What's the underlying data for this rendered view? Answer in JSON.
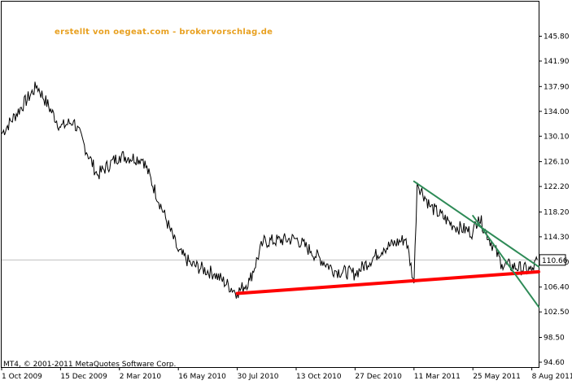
{
  "watermark": "erstellt von oegeat.com - brokervorschlag.de",
  "copyright": "MT4, © 2001-2011 MetaQuotes Software Corp.",
  "current_price_label": "110.66",
  "chart_data": {
    "type": "line",
    "title": "",
    "xlabel": "",
    "ylabel": "",
    "ylim": [
      94.6,
      149.7
    ],
    "y_ticks": [
      "145.80",
      "141.90",
      "137.90",
      "134.00",
      "130.10",
      "126.10",
      "122.20",
      "118.20",
      "114.30",
      "110.30",
      "106.40",
      "102.50",
      "98.50",
      "94.60"
    ],
    "x_ticks": [
      "1 Oct 2009",
      "15 Dec 2009",
      "2 Mar 2010",
      "16 May 2010",
      "30 Jul 2010",
      "13 Oct 2010",
      "27 Dec 2010",
      "11 Mar 2011",
      "25 May 2011",
      "8 Aug 2011"
    ],
    "current_price": 110.66,
    "grid": false,
    "series": [
      {
        "color": "#000000",
        "x": [
          "1 Oct 2009",
          "15 Nov 2009",
          "15 Dec 2009",
          "1 Jan 2010",
          "1 Feb 2010",
          "2 Mar 2010",
          "1 Apr 2010",
          "16 May 2010",
          "1 Jun 2010",
          "1 Jul 2010",
          "30 Jul 2010",
          "15 Aug 2010",
          "1 Sep 2010",
          "13 Oct 2010",
          "1 Nov 2010",
          "1 Dec 2010",
          "27 Dec 2010",
          "1 Feb 2011",
          "1 Mar 2011",
          "11 Mar 2011",
          "15 Mar 2011",
          "1 Apr 2011",
          "1 May 2011",
          "25 May 2011",
          "1 Jun 2011",
          "1 Jul 2011",
          "8 Aug 2011",
          "15 Aug 2011"
        ],
        "values": [
          130.5,
          138.0,
          131.5,
          132.5,
          124.0,
          127.0,
          126.5,
          112.0,
          110.0,
          108.5,
          105.5,
          107.5,
          113.5,
          114.0,
          112.0,
          109.0,
          108.5,
          112.5,
          114.0,
          107.0,
          122.8,
          119.0,
          116.0,
          115.0,
          117.5,
          110.0,
          109.0,
          110.66
        ]
      }
    ],
    "trendlines": [
      {
        "color": "#ff0000",
        "x": [
          "30 Jul 2010",
          "2 Oct 2011"
        ],
        "values": [
          105.4,
          108.8
        ]
      },
      {
        "color": "#2e8b57",
        "x": [
          "11 Mar 2011",
          "2 Oct 2011"
        ],
        "values": [
          123.0,
          109.6
        ]
      },
      {
        "color": "#2e8b57",
        "x": [
          "25 May 2011",
          "2 Oct 2011"
        ],
        "values": [
          117.6,
          103.3
        ]
      }
    ]
  }
}
